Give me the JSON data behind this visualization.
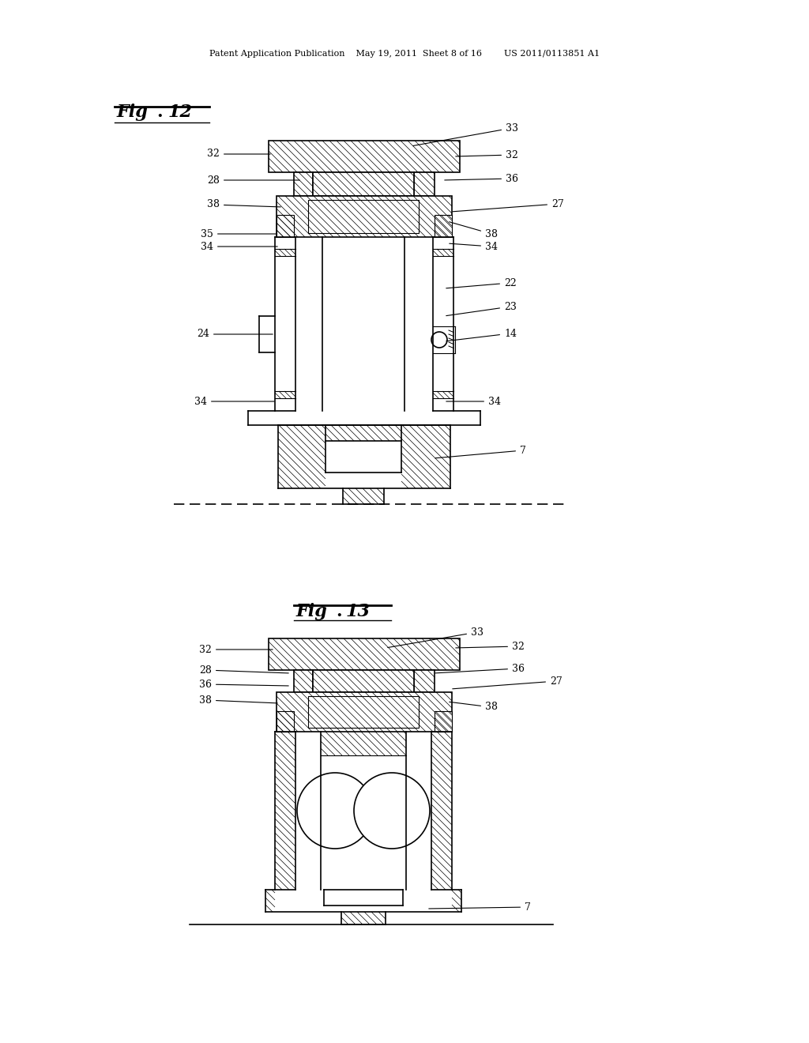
{
  "bg_color": "#ffffff",
  "line_color": "#000000",
  "header_text": "Patent Application Publication    May 19, 2011  Sheet 8 of 16        US 2011/0113851 A1"
}
